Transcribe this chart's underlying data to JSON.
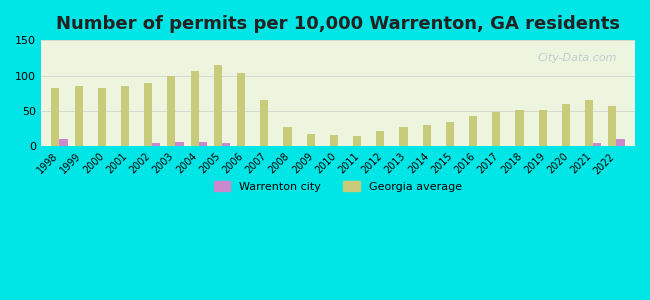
{
  "title": "Number of permits per 10,000 Warrenton, GA residents",
  "years": [
    1998,
    1999,
    2000,
    2001,
    2002,
    2003,
    2004,
    2005,
    2006,
    2007,
    2008,
    2009,
    2010,
    2011,
    2012,
    2013,
    2014,
    2015,
    2016,
    2017,
    2018,
    2019,
    2020,
    2021,
    2022
  ],
  "georgia_avg": [
    82,
    85,
    82,
    85,
    90,
    99,
    107,
    115,
    104,
    65,
    27,
    17,
    16,
    15,
    22,
    27,
    30,
    35,
    43,
    48,
    51,
    51,
    60,
    65,
    57
  ],
  "warrenton": [
    10,
    0,
    0,
    0,
    5,
    6,
    6,
    5,
    0,
    0,
    0,
    0,
    0,
    0,
    0,
    0,
    0,
    0,
    0,
    0,
    0,
    0,
    0,
    5,
    11
  ],
  "georgia_color": "#c8cc7a",
  "warrenton_color": "#cc88cc",
  "background_top": "#e8f0d0",
  "background_bottom": "#f8fdf0",
  "bg_outer": "#00e5e5",
  "ylim": [
    0,
    150
  ],
  "yticks": [
    0,
    50,
    100,
    150
  ],
  "bar_width": 0.35,
  "title_fontsize": 13
}
